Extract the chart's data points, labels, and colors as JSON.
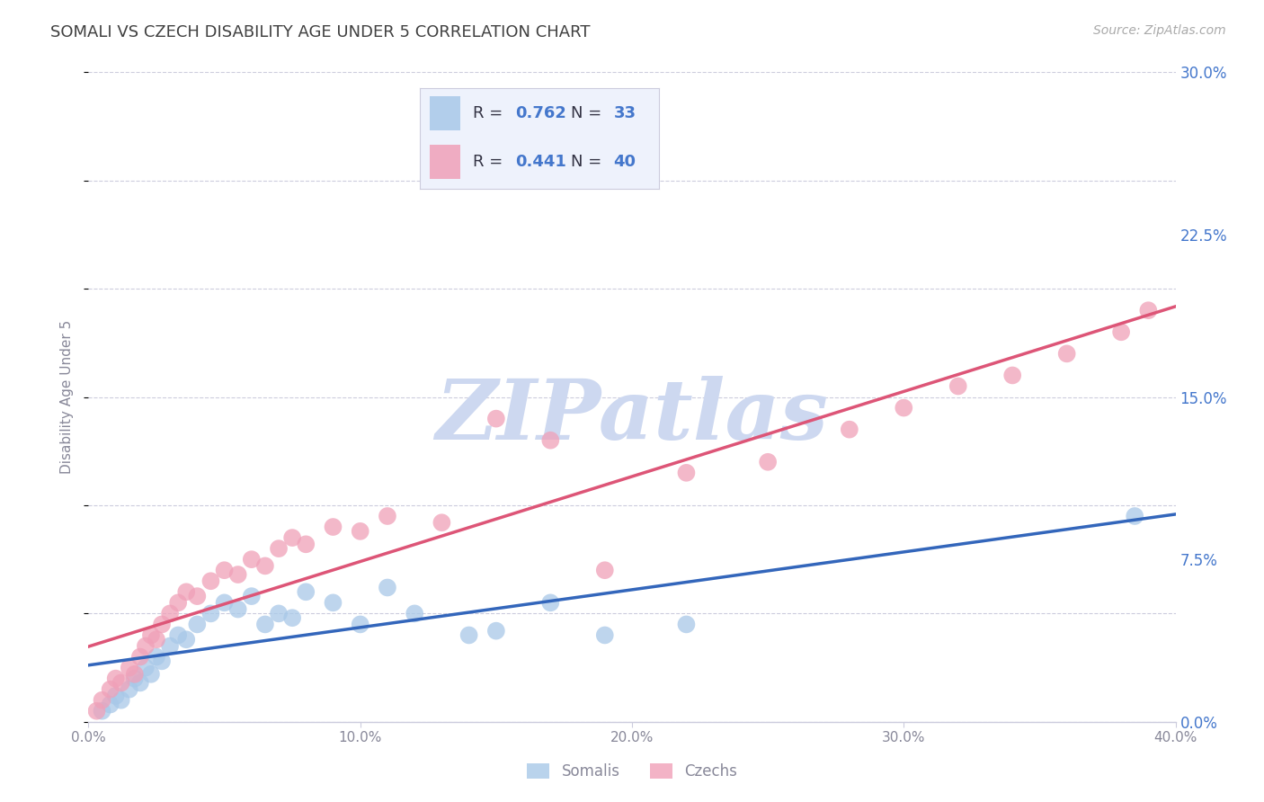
{
  "title": "SOMALI VS CZECH DISABILITY AGE UNDER 5 CORRELATION CHART",
  "source": "Source: ZipAtlas.com",
  "ylabel": "Disability Age Under 5",
  "ytick_labels": [
    "0.0%",
    "7.5%",
    "15.0%",
    "22.5%",
    "30.0%"
  ],
  "ytick_values": [
    0.0,
    7.5,
    15.0,
    22.5,
    30.0
  ],
  "xtick_labels": [
    "0.0%",
    "10.0%",
    "20.0%",
    "30.0%",
    "40.0%"
  ],
  "xtick_values": [
    0.0,
    10.0,
    20.0,
    30.0,
    40.0
  ],
  "xlim": [
    0.0,
    40.0
  ],
  "ylim": [
    0.0,
    30.0
  ],
  "somali_R": "0.762",
  "somali_N": "33",
  "czech_R": "0.441",
  "czech_N": "40",
  "somali_color": "#a8c8e8",
  "czech_color": "#f0a0b8",
  "somali_line_color": "#3366bb",
  "czech_line_color": "#dd5577",
  "background_color": "#ffffff",
  "grid_color": "#ccccdd",
  "title_color": "#404040",
  "legend_box_facecolor": "#eef2fc",
  "legend_box_edgecolor": "#ccccdd",
  "watermark_text": "ZIPatlas",
  "watermark_color": "#cdd8f0",
  "right_tick_color": "#4477cc",
  "label_color": "#888899",
  "somali_x": [
    0.5,
    0.8,
    1.0,
    1.2,
    1.5,
    1.7,
    1.9,
    2.1,
    2.3,
    2.5,
    2.7,
    3.0,
    3.3,
    3.6,
    4.0,
    4.5,
    5.0,
    5.5,
    6.0,
    6.5,
    7.0,
    7.5,
    8.0,
    9.0,
    10.0,
    11.0,
    12.0,
    14.0,
    15.0,
    17.0,
    19.0,
    22.0,
    38.5
  ],
  "somali_y": [
    0.5,
    0.8,
    1.2,
    1.0,
    1.5,
    2.0,
    1.8,
    2.5,
    2.2,
    3.0,
    2.8,
    3.5,
    4.0,
    3.8,
    4.5,
    5.0,
    5.5,
    5.2,
    5.8,
    4.5,
    5.0,
    4.8,
    6.0,
    5.5,
    4.5,
    6.2,
    5.0,
    4.0,
    4.2,
    5.5,
    4.0,
    4.5,
    9.5
  ],
  "czech_x": [
    0.3,
    0.5,
    0.8,
    1.0,
    1.2,
    1.5,
    1.7,
    1.9,
    2.1,
    2.3,
    2.5,
    2.7,
    3.0,
    3.3,
    3.6,
    4.0,
    4.5,
    5.0,
    5.5,
    6.0,
    6.5,
    7.0,
    7.5,
    8.0,
    9.0,
    10.0,
    11.0,
    13.0,
    15.0,
    17.0,
    19.0,
    22.0,
    25.0,
    28.0,
    30.0,
    32.0,
    34.0,
    36.0,
    38.0,
    39.0
  ],
  "czech_y": [
    0.5,
    1.0,
    1.5,
    2.0,
    1.8,
    2.5,
    2.2,
    3.0,
    3.5,
    4.0,
    3.8,
    4.5,
    5.0,
    5.5,
    6.0,
    5.8,
    6.5,
    7.0,
    6.8,
    7.5,
    7.2,
    8.0,
    8.5,
    8.2,
    9.0,
    8.8,
    9.5,
    9.2,
    14.0,
    13.0,
    7.0,
    11.5,
    12.0,
    13.5,
    14.5,
    15.5,
    16.0,
    17.0,
    18.0,
    19.0
  ]
}
